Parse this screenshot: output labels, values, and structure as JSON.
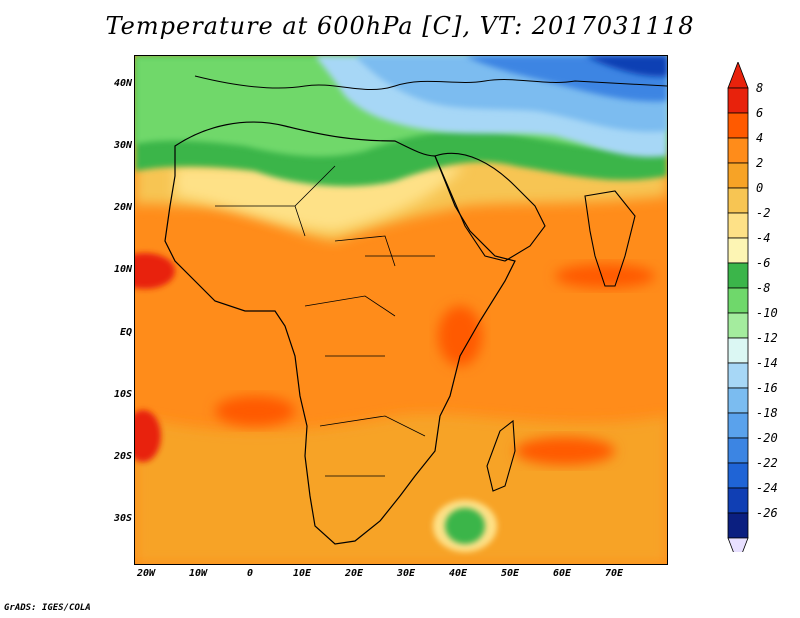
{
  "title": "Temperature at 600hPa [C], VT: 2017031118",
  "lat_labels": [
    "40N",
    "30N",
    "20N",
    "10N",
    "EQ",
    "10S",
    "20S",
    "30S"
  ],
  "lon_labels": [
    "20W",
    "10W",
    "0",
    "10E",
    "20E",
    "30E",
    "40E",
    "50E",
    "60E",
    "70E"
  ],
  "colorbar": {
    "labels": [
      "8",
      "6",
      "4",
      "2",
      "0",
      "-2",
      "-4",
      "-6",
      "-8",
      "-10",
      "-12",
      "-14",
      "-16",
      "-18",
      "-20",
      "-22",
      "-24",
      "-26"
    ],
    "colors": [
      "#e8220c",
      "#ff5a00",
      "#ff8c1a",
      "#f7a326",
      "#f7c553",
      "#fee187",
      "#fdf5b4",
      "#3bb54a",
      "#6fd86b",
      "#a4ec9e",
      "#dbf7f3",
      "#a7d7f6",
      "#7bbcf0",
      "#5aa2ec",
      "#3c85e3",
      "#1f64d6",
      "#103fb4",
      "#0b1f80"
    ],
    "top_color": "#e8220c",
    "bottom_color": "#e8e0ff"
  },
  "credit": "GrADS: IGES/COLA"
}
